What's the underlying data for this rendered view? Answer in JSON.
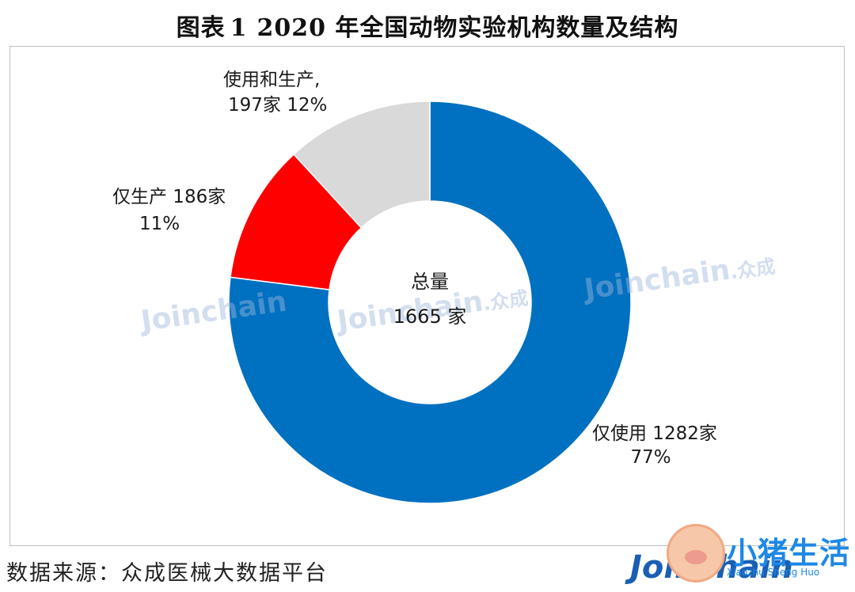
{
  "title": {
    "prefix": "图表",
    "number": "1",
    "text": "2020 年全国动物实验机构数量及结构"
  },
  "chart_data": {
    "type": "pie",
    "donut": true,
    "slices": [
      {
        "name": "仅使用",
        "value": 1282,
        "unit": "家",
        "percent": "77%",
        "color": "#0070C0",
        "label_line1": "仅使用 1282家",
        "label_line2": "77%"
      },
      {
        "name": "仅生产",
        "value": 186,
        "unit": "家",
        "percent": "11%",
        "color": "#FF0000",
        "label_line1": "仅生产  186家",
        "label_line2": "11%"
      },
      {
        "name": "使用和生产",
        "value": 197,
        "unit": "家",
        "percent": "12%",
        "color": "#D9D9D9",
        "label_line1": "使用和生产,",
        "label_line2": "197家 12%"
      }
    ],
    "center": {
      "line1": "总量",
      "line2": "1665 家"
    },
    "legend": "none"
  },
  "watermark": {
    "text": "Joinchain",
    "cn": "众成"
  },
  "source": "数据来源：众成医械大数据平台",
  "logo": {
    "text": "Joinchain",
    "badge_text": "小猪生活",
    "badge_sub": "Xiaozhu Sheng Huo"
  }
}
